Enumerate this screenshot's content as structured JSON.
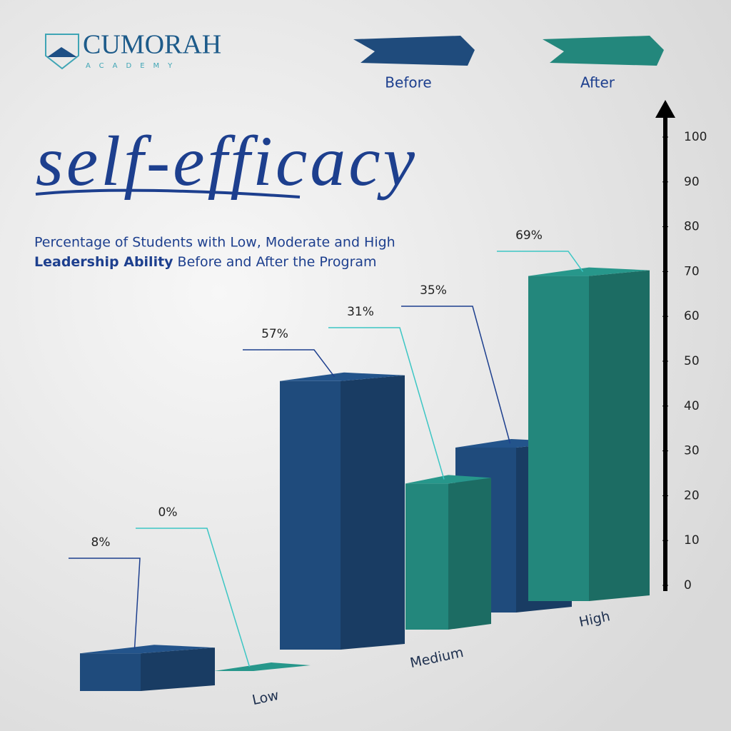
{
  "logo": {
    "name": "CUMORAH",
    "tagline": "ACADEMY"
  },
  "chart_data": {
    "type": "bar3d",
    "title": "self-efficacy",
    "subtitle": [
      "Percentage of Students with Low, Moderate and High",
      "Leadership Ability",
      "Before and After the Program"
    ],
    "categories": [
      "Low",
      "Medium",
      "High"
    ],
    "series": [
      {
        "name": "Before",
        "color": "#1f4b7c",
        "values": [
          8,
          57,
          35
        ],
        "value_labels": [
          "8%",
          "57%",
          "35%"
        ]
      },
      {
        "name": "After",
        "color": "#23877c",
        "values": [
          0,
          31,
          69
        ],
        "value_labels": [
          "0%",
          "31%",
          "69%"
        ]
      }
    ],
    "ylim": [
      0,
      100
    ],
    "yticks": [
      0,
      10,
      20,
      30,
      40,
      50,
      60,
      70,
      80,
      90,
      100
    ],
    "grid": false
  }
}
